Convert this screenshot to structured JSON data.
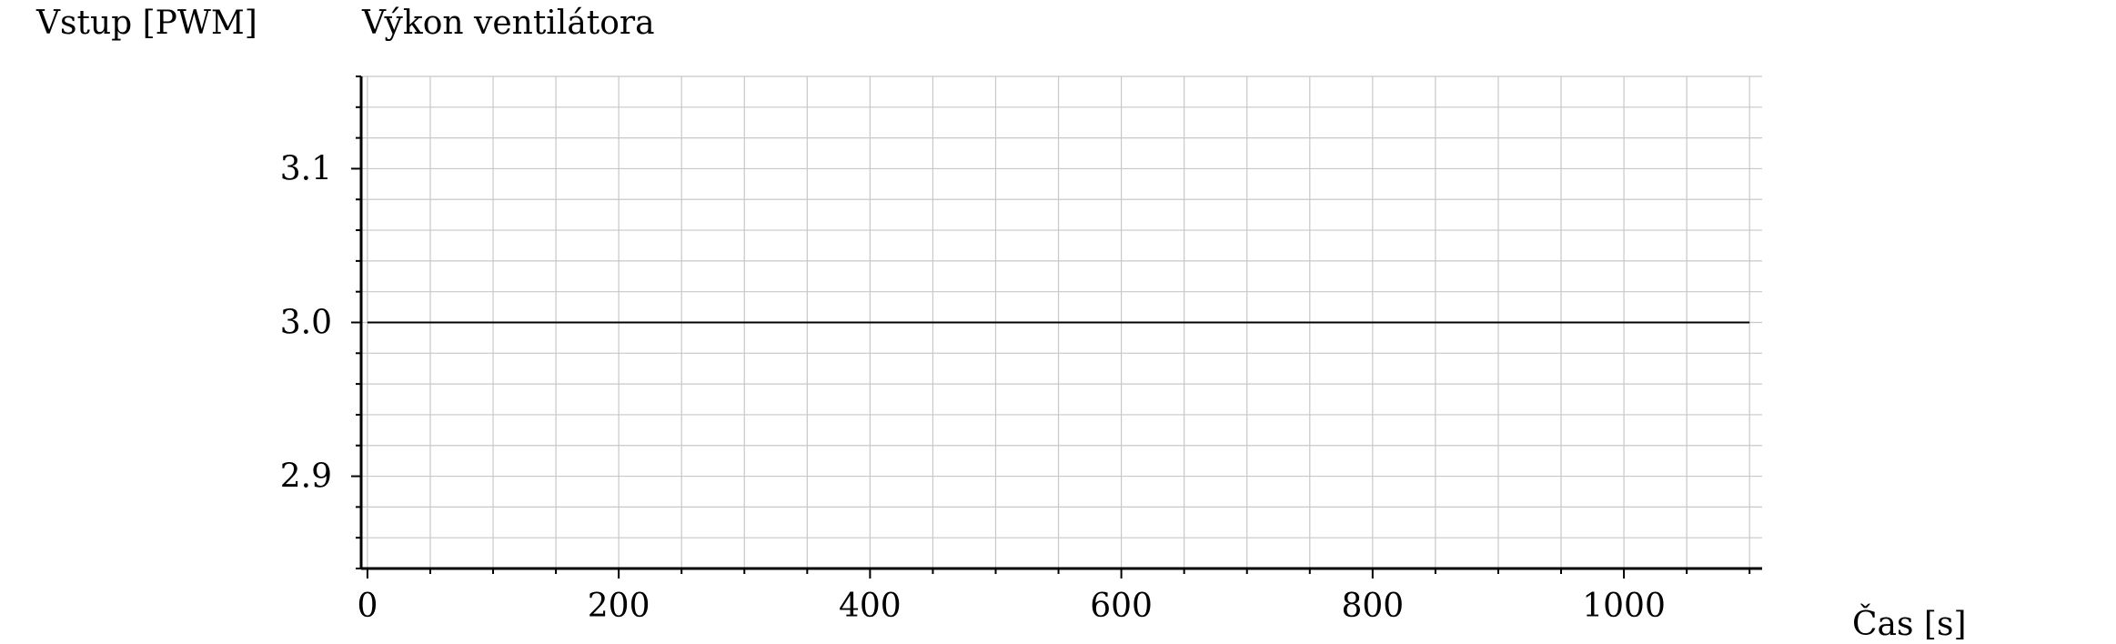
{
  "chart_data": {
    "type": "line",
    "title": "Výkon ventilátora",
    "xlabel": "Čas [s]",
    "ylabel": "Vstup [PWM]",
    "xlim": [
      -5,
      1110
    ],
    "ylim": [
      2.84,
      3.16
    ],
    "x_ticks": [
      0,
      200,
      400,
      600,
      800,
      1000
    ],
    "x_tick_labels": [
      "0",
      "200",
      "400",
      "600",
      "800",
      "1000"
    ],
    "y_ticks": [
      2.9,
      3.0,
      3.1
    ],
    "y_tick_labels": [
      "2.9",
      "3.0",
      "3.1"
    ],
    "x_minor_step": 50,
    "y_minor_step": 0.02,
    "grid": true,
    "series": [
      {
        "x": [
          0,
          1100
        ],
        "y": [
          3.0,
          3.0
        ],
        "color": "#000000"
      }
    ]
  }
}
